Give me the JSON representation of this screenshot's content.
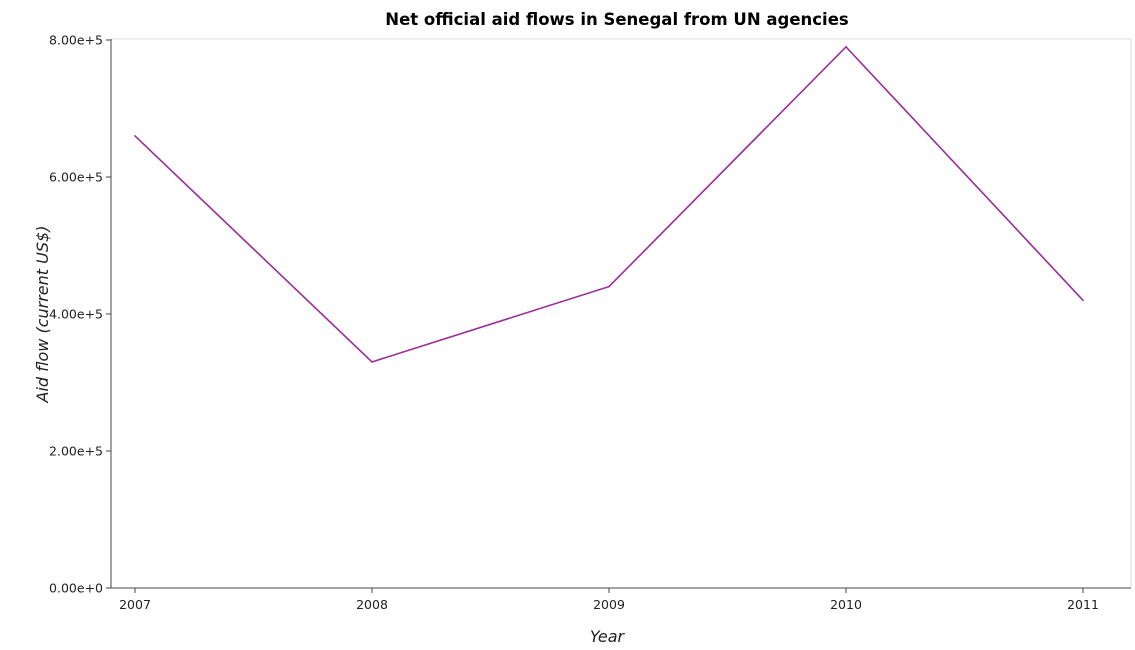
{
  "chart_data": {
    "type": "line",
    "title": "Net official aid flows in Senegal from UN agencies",
    "xlabel": "Year",
    "ylabel": "Aid flow (current US$)",
    "categories": [
      "2007",
      "2008",
      "2009",
      "2010",
      "2011"
    ],
    "series": [
      {
        "values": [
          660000,
          330000,
          440000,
          790000,
          420000
        ]
      }
    ],
    "ylim": [
      0,
      800000
    ],
    "yticks": [
      0,
      200000,
      400000,
      600000,
      800000
    ],
    "ytick_labels": [
      "0.00e+0",
      "2.00e+5",
      "4.00e+5",
      "6.00e+5",
      "8.00e+5"
    ],
    "grid": false,
    "line_color": "#9b2d9b"
  }
}
